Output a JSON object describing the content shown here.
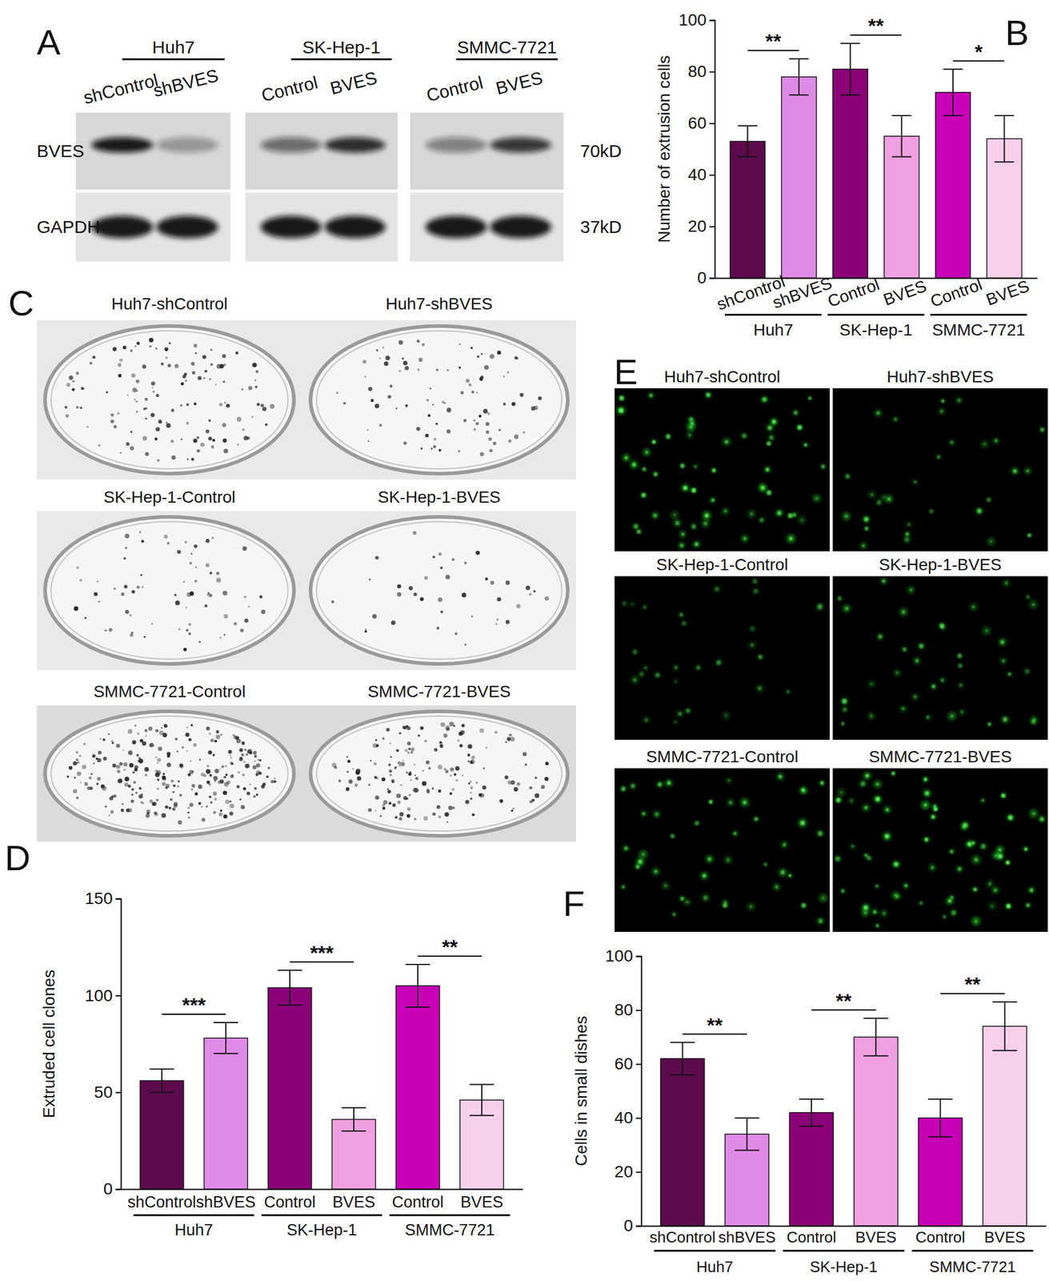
{
  "chart_data": [
    {
      "type": "bar",
      "annotations": [
        "B"
      ],
      "y_label": "Number of extrusion cells",
      "categories": [
        "shControl",
        "shBVES",
        "Control",
        "BVES",
        "Control",
        "BVES"
      ],
      "groups": [
        "Huh7",
        "SK-Hep-1",
        "SMMC-7721"
      ],
      "values": [
        53,
        78,
        81,
        55,
        72,
        54
      ],
      "errors": [
        6,
        7,
        10,
        8,
        9,
        9
      ],
      "colors": [
        "#5c0a4c",
        "#e08ae8",
        "#8b0078",
        "#f0a0e0",
        "#c800b8",
        "#f9d0ec"
      ],
      "ylim": [
        0,
        100
      ],
      "yticks": [
        0,
        20,
        40,
        60,
        80,
        100
      ],
      "significance": [
        {
          "pair": [
            0,
            1
          ],
          "label": "**"
        },
        {
          "pair": [
            2,
            3
          ],
          "label": "**"
        },
        {
          "pair": [
            4,
            5
          ],
          "label": "*"
        }
      ]
    },
    {
      "type": "bar",
      "annotations": [
        "D"
      ],
      "y_label": "Extruded cell clones",
      "categories": [
        "shControl",
        "shBVES",
        "Control",
        "BVES",
        "Control",
        "BVES"
      ],
      "groups": [
        "Huh7",
        "SK-Hep-1",
        "SMMC-7721"
      ],
      "values": [
        56,
        78,
        104,
        36,
        105,
        46
      ],
      "errors": [
        6,
        8,
        9,
        6,
        11,
        8
      ],
      "colors": [
        "#5c0a4c",
        "#e08ae8",
        "#8b0078",
        "#f0a0e0",
        "#c800b8",
        "#f9d0ec"
      ],
      "ylim": [
        0,
        150
      ],
      "yticks": [
        0,
        50,
        100,
        150
      ],
      "significance": [
        {
          "pair": [
            0,
            1
          ],
          "label": "***"
        },
        {
          "pair": [
            2,
            3
          ],
          "label": "***"
        },
        {
          "pair": [
            4,
            5
          ],
          "label": "**"
        }
      ]
    },
    {
      "type": "bar",
      "annotations": [
        "F"
      ],
      "y_label": "Cells in small dishes",
      "categories": [
        "shControl",
        "shBVES",
        "Control",
        "BVES",
        "Control",
        "BVES"
      ],
      "groups": [
        "Huh7",
        "SK-Hep-1",
        "SMMC-7721"
      ],
      "values": [
        62,
        34,
        42,
        70,
        40,
        74
      ],
      "errors": [
        6,
        6,
        5,
        7,
        7,
        9
      ],
      "colors": [
        "#5c0a4c",
        "#e08ae8",
        "#8b0078",
        "#f0a0e0",
        "#c800b8",
        "#f9d0ec"
      ],
      "ylim": [
        0,
        100
      ],
      "yticks": [
        0,
        20,
        40,
        60,
        80,
        100
      ],
      "significance": [
        {
          "pair": [
            0,
            1
          ],
          "label": "**"
        },
        {
          "pair": [
            2,
            3
          ],
          "label": "**"
        },
        {
          "pair": [
            4,
            5
          ],
          "label": "**"
        }
      ]
    }
  ],
  "blot": {
    "annotations": [
      "A"
    ],
    "groups": [
      {
        "name": "Huh7",
        "lanes": [
          "shControl",
          "shBVES"
        ]
      },
      {
        "name": "SK-Hep-1",
        "lanes": [
          "Control",
          "BVES"
        ]
      },
      {
        "name": "SMMC-7721",
        "lanes": [
          "Control",
          "BVES"
        ]
      }
    ],
    "rows": [
      {
        "protein": "BVES",
        "size": "70kD"
      },
      {
        "protein": "GAPDH",
        "size": "37kD"
      }
    ]
  },
  "colony_plates": {
    "annotations": [
      "C"
    ],
    "titles": [
      "Huh7-shControl",
      "Huh7-shBVES",
      "SK-Hep-1-Control",
      "SK-Hep-1-BVES",
      "SMMC-7721-Control",
      "SMMC-7721-BVES"
    ]
  },
  "fluorescence": {
    "annotations": [
      "E"
    ],
    "titles": [
      "Huh7-shControl",
      "Huh7-shBVES",
      "SK-Hep-1-Control",
      "SK-Hep-1-BVES",
      "SMMC-7721-Control",
      "SMMC-7721-BVES"
    ]
  }
}
